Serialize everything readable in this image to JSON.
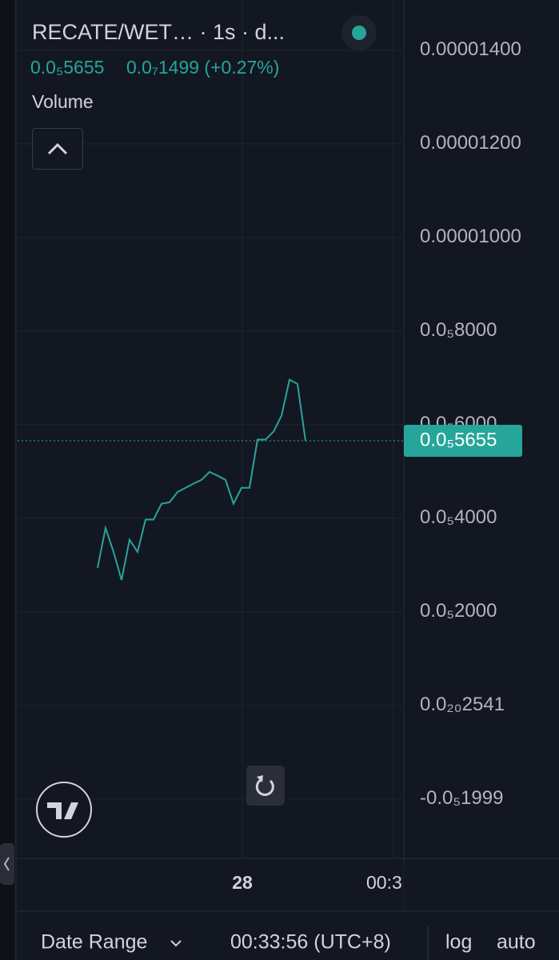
{
  "header": {
    "title": "RECATE/WET… · 1s · d...",
    "price": "0.0₅5655",
    "change": "0.0₇1499 (+0.27%)",
    "volume_label": "Volume"
  },
  "chart_data": {
    "type": "line",
    "color": "#26a69a",
    "grid": true,
    "values": [
      2.94e-06,
      3.79e-06,
      3.28e-06,
      2.68e-06,
      3.54e-06,
      3.28e-06,
      3.97e-06,
      3.97e-06,
      4.31e-06,
      4.34e-06,
      4.56e-06,
      4.65e-06,
      4.74e-06,
      4.82e-06,
      4.99e-06,
      4.91e-06,
      4.82e-06,
      4.31e-06,
      4.65e-06,
      4.65e-06,
      5.68e-06,
      5.68e-06,
      5.85e-06,
      6.19e-06,
      6.96e-06,
      6.87e-06,
      5.655e-06
    ],
    "ylim": [
      -3.27e-06,
      1.499e-05
    ],
    "yticks": [
      {
        "value": 1.4e-05,
        "label": "0.00001400"
      },
      {
        "value": 1.2e-05,
        "label": "0.00001200"
      },
      {
        "value": 1e-05,
        "label": "0.00001000"
      },
      {
        "value": 8e-06,
        "label": "0.0₅8000"
      },
      {
        "value": 6e-06,
        "label": "0.0₅6000"
      },
      {
        "value": 4e-06,
        "label": "0.0₅4000"
      },
      {
        "value": 2e-06,
        "label": "0.0₅2000"
      },
      {
        "value": 2.541e-21,
        "label": "0.0₂₀2541"
      },
      {
        "value": -1.999e-06,
        "label": "-0.0₅1999"
      }
    ],
    "last_price": {
      "value": 5.655e-06,
      "label": "0.0₅5655"
    },
    "x_labels": [
      "28",
      "00:3"
    ]
  },
  "footer": {
    "date_range": "Date Range",
    "time": "00:33:56 (UTC+8)",
    "log": "log",
    "auto": "auto"
  }
}
